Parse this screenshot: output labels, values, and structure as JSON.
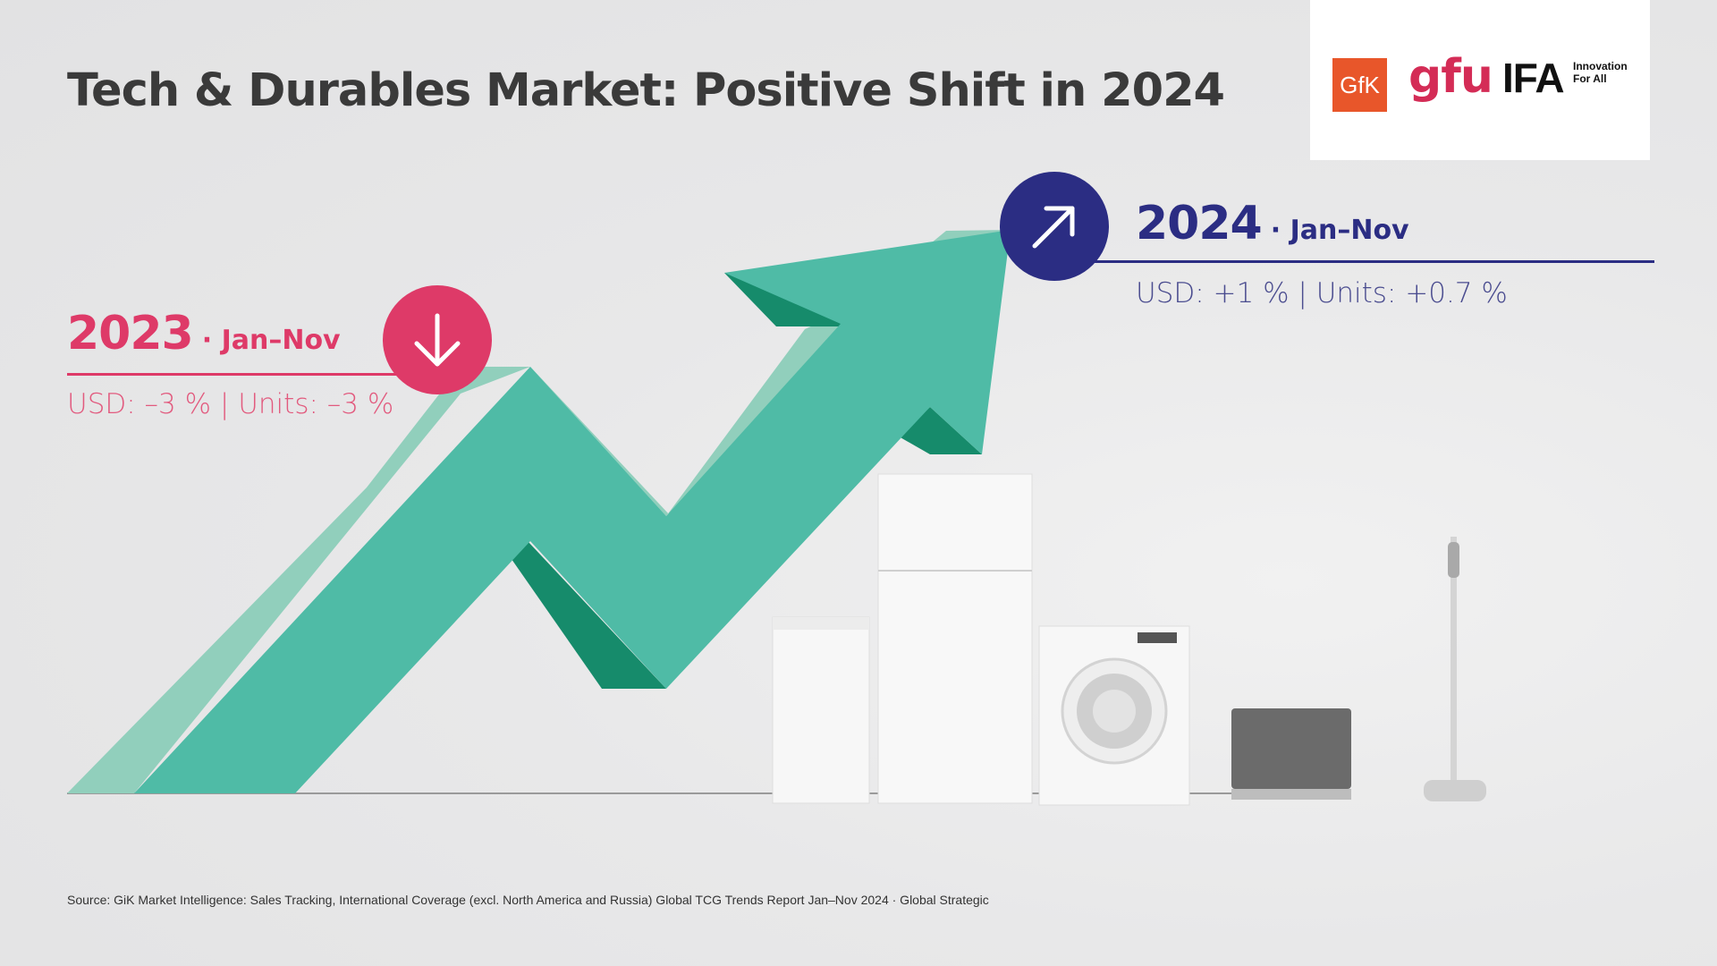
{
  "title": "Tech & Durables Market: Positive Shift in 2024",
  "logos": {
    "gfk": "GfK",
    "gfu": "gfu",
    "ifa": "IFA",
    "ifa_tagline": "Innovation\nFor All",
    "gfk_color": "#e8562a",
    "gfu_color": "#d42c56"
  },
  "period_2023": {
    "year": "2023",
    "period": "· Jan–Nov",
    "stats": "USD: –3 % | Units: –3 %",
    "trend_icon": "arrow-down-icon",
    "color": "#de3a68"
  },
  "period_2024": {
    "year": "2024",
    "period": "· Jan–Nov",
    "stats": "USD: +1 % | Units: +0.7 %",
    "trend_icon": "arrow-up-right-icon",
    "color": "#2b2d83"
  },
  "arrow_color": "#4fbba6",
  "source": "Source: GiK Market Intelligence: Sales Tracking, International Coverage (excl. North America and Russia) Global TCG Trends Report Jan–Nov 2024 · Global Strategic"
}
